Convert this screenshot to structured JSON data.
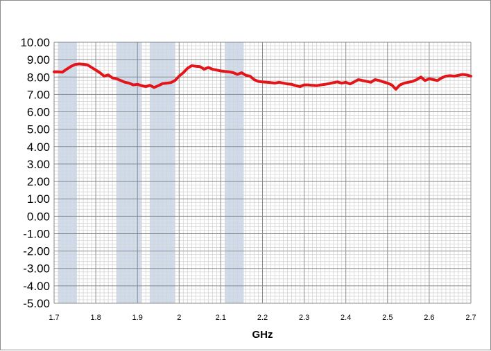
{
  "chart_data": {
    "type": "line",
    "title": "",
    "xlabel": "GHz",
    "ylabel": "",
    "xlim": [
      1.7,
      2.7
    ],
    "ylim": [
      -5.0,
      10.0
    ],
    "x_ticks": [
      "1.7",
      "1.8",
      "1.9",
      "2",
      "2.1",
      "2.2",
      "2.3",
      "2.4",
      "2.5",
      "2.6",
      "2.7"
    ],
    "y_ticks": [
      "10.00",
      "9.00",
      "8.00",
      "7.00",
      "6.00",
      "5.00",
      "4.00",
      "3.00",
      "2.00",
      "1.00",
      "0.00",
      "-1.00",
      "-2.00",
      "-3.00",
      "-4.00",
      "-5.00"
    ],
    "grid": "major and minor",
    "legend": "none",
    "shaded_bands": [
      [
        1.71,
        1.755
      ],
      [
        1.85,
        1.91
      ],
      [
        1.93,
        1.99
      ],
      [
        2.11,
        2.155
      ]
    ],
    "colors": {
      "line": "#e3151a",
      "band": "#c7d6ea",
      "grid_major": "#8a8a8a",
      "grid_minor": "#d4d4d4"
    },
    "series": [
      {
        "x": [
          1.7,
          1.71,
          1.72,
          1.73,
          1.74,
          1.75,
          1.76,
          1.77,
          1.78,
          1.79,
          1.8,
          1.81,
          1.82,
          1.83,
          1.84,
          1.85,
          1.86,
          1.87,
          1.88,
          1.89,
          1.9,
          1.91,
          1.92,
          1.93,
          1.94,
          1.95,
          1.96,
          1.97,
          1.98,
          1.99,
          2.0,
          2.01,
          2.02,
          2.03,
          2.04,
          2.05,
          2.06,
          2.07,
          2.08,
          2.09,
          2.1,
          2.11,
          2.12,
          2.13,
          2.14,
          2.15,
          2.16,
          2.17,
          2.18,
          2.19,
          2.2,
          2.21,
          2.22,
          2.23,
          2.24,
          2.25,
          2.26,
          2.27,
          2.28,
          2.29,
          2.3,
          2.31,
          2.32,
          2.33,
          2.34,
          2.35,
          2.36,
          2.37,
          2.38,
          2.39,
          2.4,
          2.41,
          2.42,
          2.43,
          2.44,
          2.45,
          2.46,
          2.47,
          2.48,
          2.49,
          2.5,
          2.51,
          2.52,
          2.53,
          2.54,
          2.55,
          2.56,
          2.57,
          2.58,
          2.59,
          2.6,
          2.61,
          2.62,
          2.63,
          2.64,
          2.65,
          2.66,
          2.67,
          2.68,
          2.69,
          2.7
        ],
        "y": [
          8.3,
          8.3,
          8.28,
          8.45,
          8.6,
          8.72,
          8.75,
          8.73,
          8.7,
          8.55,
          8.4,
          8.25,
          8.05,
          8.12,
          7.95,
          7.9,
          7.8,
          7.7,
          7.65,
          7.55,
          7.58,
          7.5,
          7.45,
          7.52,
          7.4,
          7.5,
          7.62,
          7.65,
          7.68,
          7.8,
          8.05,
          8.25,
          8.5,
          8.65,
          8.62,
          8.6,
          8.45,
          8.55,
          8.45,
          8.4,
          8.35,
          8.32,
          8.3,
          8.25,
          8.15,
          8.25,
          8.1,
          8.05,
          7.85,
          7.75,
          7.72,
          7.7,
          7.68,
          7.65,
          7.7,
          7.65,
          7.6,
          7.58,
          7.5,
          7.45,
          7.55,
          7.55,
          7.52,
          7.5,
          7.55,
          7.58,
          7.62,
          7.68,
          7.72,
          7.65,
          7.7,
          7.6,
          7.72,
          7.85,
          7.8,
          7.75,
          7.7,
          7.85,
          7.8,
          7.72,
          7.65,
          7.55,
          7.3,
          7.55,
          7.65,
          7.7,
          7.75,
          7.85,
          8.0,
          7.8,
          7.9,
          7.85,
          7.8,
          7.95,
          8.05,
          8.08,
          8.05,
          8.1,
          8.15,
          8.12,
          8.05
        ]
      }
    ]
  }
}
